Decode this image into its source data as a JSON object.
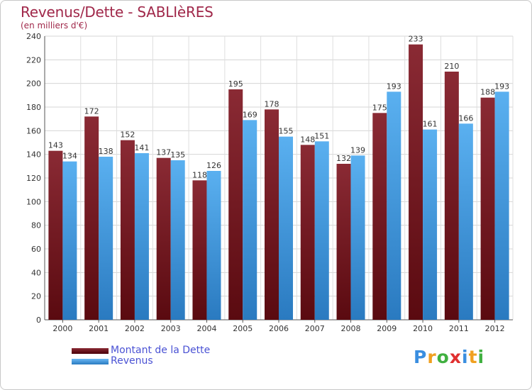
{
  "title": "Revenus/Dette - SABLIèRES",
  "subtitle": "(en milliers d'€)",
  "chart_data": {
    "type": "bar",
    "title": "Revenus/Dette - SABLIèRES",
    "subtitle": "(en milliers d'€)",
    "categories": [
      "2000",
      "2001",
      "2002",
      "2003",
      "2004",
      "2005",
      "2006",
      "2007",
      "2008",
      "2009",
      "2010",
      "2011",
      "2012"
    ],
    "series": [
      {
        "name": "Montant de la Dette",
        "color": "#7a1a24",
        "values": [
          143,
          172,
          152,
          137,
          118,
          195,
          178,
          148,
          132,
          175,
          233,
          210,
          188
        ]
      },
      {
        "name": "Revenus",
        "color": "#3a9ae0",
        "values": [
          134,
          138,
          141,
          135,
          126,
          169,
          155,
          151,
          139,
          193,
          161,
          166,
          193
        ]
      }
    ],
    "ylim": [
      0,
      240
    ],
    "yticks": [
      0,
      20,
      40,
      60,
      80,
      100,
      120,
      140,
      160,
      180,
      200,
      220,
      240
    ],
    "grid": true,
    "legend_position": "bottom-left"
  },
  "legend": {
    "items": [
      {
        "label": "Montant de la Dette",
        "color": "#7a1a24"
      },
      {
        "label": "Revenus",
        "color": "#3a9ae0"
      }
    ]
  },
  "logo": {
    "text": "Proxiti",
    "letters": [
      "P",
      "r",
      "o",
      "x",
      "i",
      "t",
      "i"
    ],
    "colors": [
      "#3a8ee0",
      "#f0a020",
      "#40b040",
      "#e03030",
      "#3a8ee0",
      "#f0a020",
      "#40b040"
    ]
  }
}
